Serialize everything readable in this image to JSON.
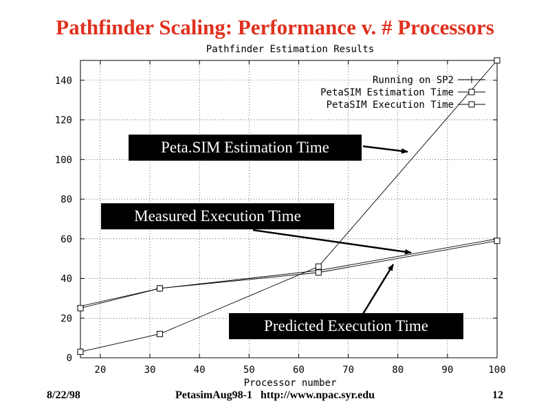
{
  "slide": {
    "title": "Pathfinder Scaling: Performance v. # Processors"
  },
  "chart_data": {
    "type": "line",
    "title": "Pathfinder Estimation Results",
    "xlabel": "Processor number",
    "ylabel": "",
    "xlim": [
      16,
      100
    ],
    "ylim": [
      0,
      150
    ],
    "xticks": [
      20,
      30,
      40,
      50,
      60,
      70,
      80,
      90,
      100
    ],
    "yticks": [
      0,
      20,
      40,
      60,
      80,
      100,
      120,
      140
    ],
    "grid": true,
    "legend_position": "top-right",
    "series": [
      {
        "name": "Running on SP2",
        "marker": "plus",
        "x": [
          16,
          32,
          64,
          100
        ],
        "y": [
          26,
          35,
          44,
          60
        ]
      },
      {
        "name": "PetaSIM Estimation Time",
        "marker": "square",
        "x": [
          16,
          32,
          64,
          100
        ],
        "y": [
          3,
          12,
          46,
          150
        ]
      },
      {
        "name": "PetaSIM Execution Time",
        "marker": "square",
        "x": [
          16,
          32,
          64,
          100
        ],
        "y": [
          25,
          35,
          43,
          59
        ]
      }
    ],
    "annotations": [
      {
        "text": "Peta.SIM Estimation Time"
      },
      {
        "text": "Measured Execution Time"
      },
      {
        "text": "Predicted Execution Time"
      }
    ]
  },
  "footer": {
    "date": "8/22/98",
    "source": "PetasimAug98-1   http://www.npac.syr.edu",
    "page_number": "12"
  }
}
